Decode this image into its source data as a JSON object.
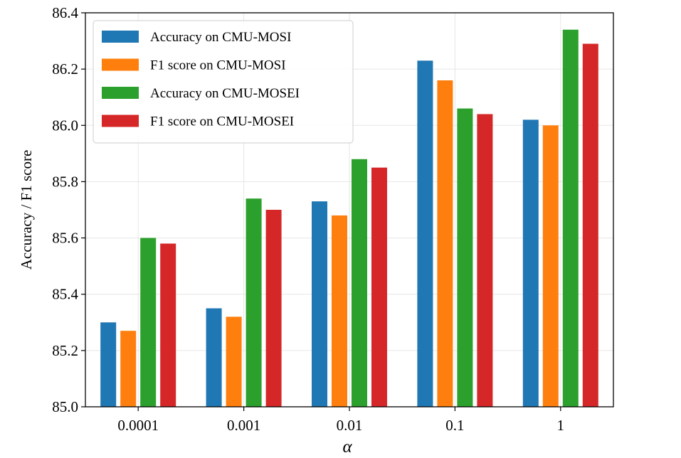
{
  "chart_data": {
    "type": "bar",
    "title": "",
    "xlabel": "α",
    "ylabel": "Accuracy / F1 score",
    "categories": [
      "0.0001",
      "0.001",
      "0.01",
      "0.1",
      "1"
    ],
    "ylim": [
      85.0,
      86.4
    ],
    "yticks": [
      "85.0",
      "85.2",
      "85.4",
      "85.6",
      "85.8",
      "86.0",
      "86.2",
      "86.4"
    ],
    "grid": true,
    "legend_position": "top-left",
    "series": [
      {
        "name": "Accuracy on CMU-MOSI",
        "color": "#1f77b4",
        "values": [
          85.3,
          85.35,
          85.73,
          86.23,
          86.02
        ]
      },
      {
        "name": "F1 score on CMU-MOSI",
        "color": "#ff7f0e",
        "values": [
          85.27,
          85.32,
          85.68,
          86.16,
          86.0
        ]
      },
      {
        "name": "Accuracy on CMU-MOSEI",
        "color": "#2ca02c",
        "values": [
          85.6,
          85.74,
          85.88,
          86.06,
          86.34
        ]
      },
      {
        "name": "F1 score on CMU-MOSEI",
        "color": "#d62728",
        "values": [
          85.58,
          85.7,
          85.85,
          86.04,
          86.29
        ]
      }
    ]
  }
}
